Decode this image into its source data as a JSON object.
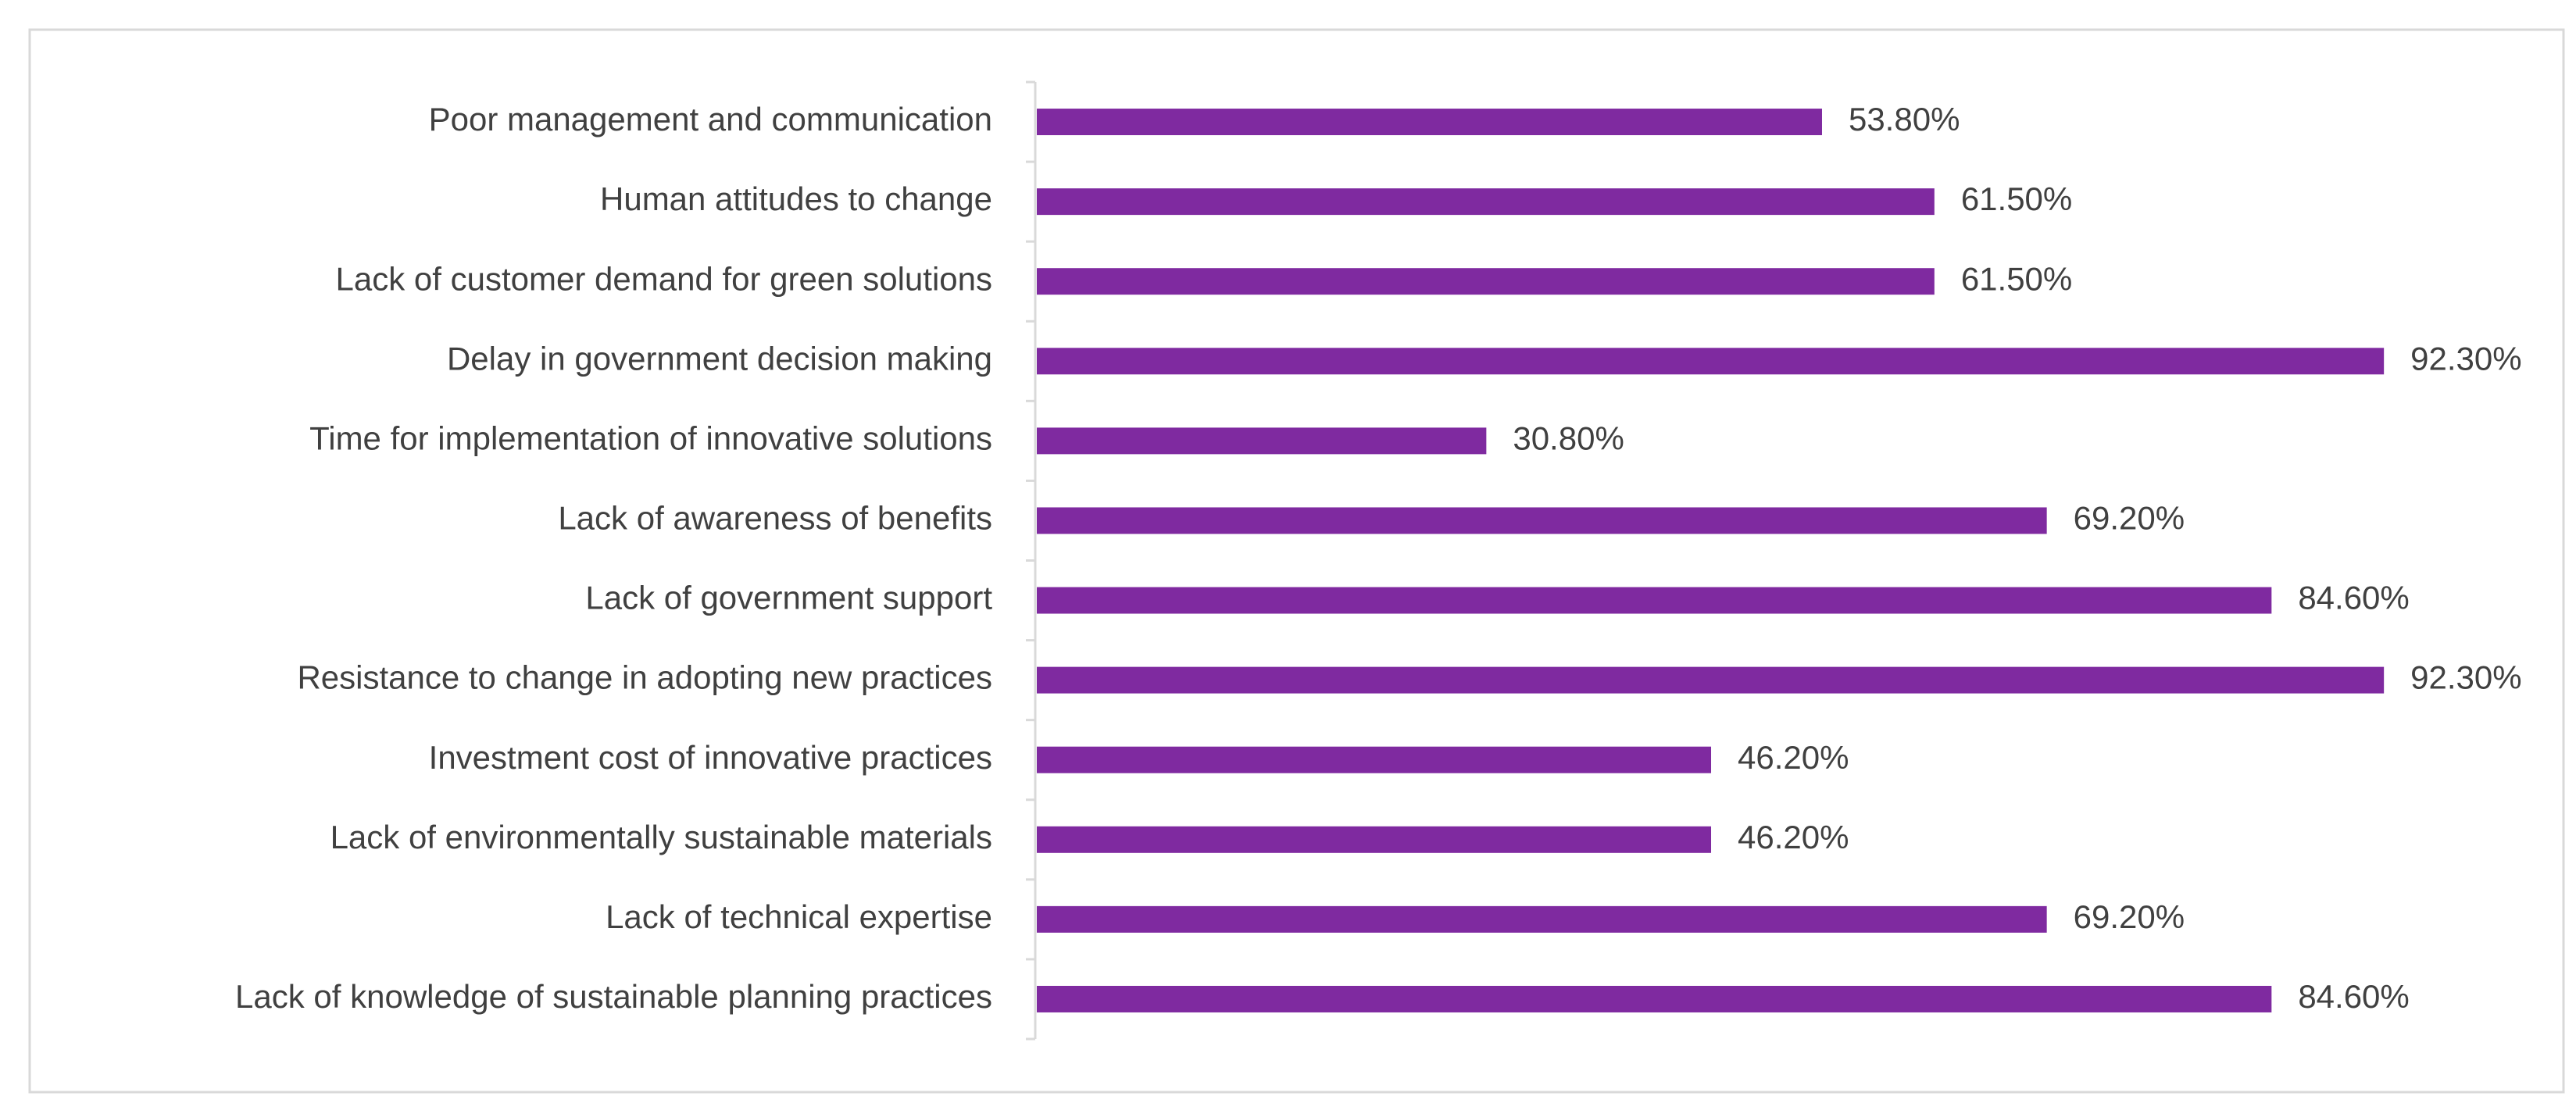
{
  "chart_data": {
    "type": "bar",
    "orientation": "horizontal",
    "color": "#7f2aa0",
    "categories": [
      "Poor management and communication",
      "Human attitudes to change",
      "Lack of customer demand for green solutions",
      "Delay in government decision making",
      "Time for implementation of innovative solutions",
      "Lack of awareness of benefits",
      "Lack of government support",
      "Resistance to change in adopting new practices",
      "Investment cost of innovative practices",
      "Lack of environmentally sustainable materials",
      "Lack of technical expertise",
      "Lack of knowledge of sustainable planning practices"
    ],
    "values": [
      53.8,
      61.5,
      61.5,
      92.3,
      30.8,
      69.2,
      84.6,
      92.3,
      46.2,
      46.2,
      69.2,
      84.6
    ],
    "value_labels": [
      "53.80%",
      "61.50%",
      "61.50%",
      "92.30%",
      "30.80%",
      "69.20%",
      "84.60%",
      "92.30%",
      "46.20%",
      "46.20%",
      "69.20%",
      "84.60%"
    ]
  }
}
